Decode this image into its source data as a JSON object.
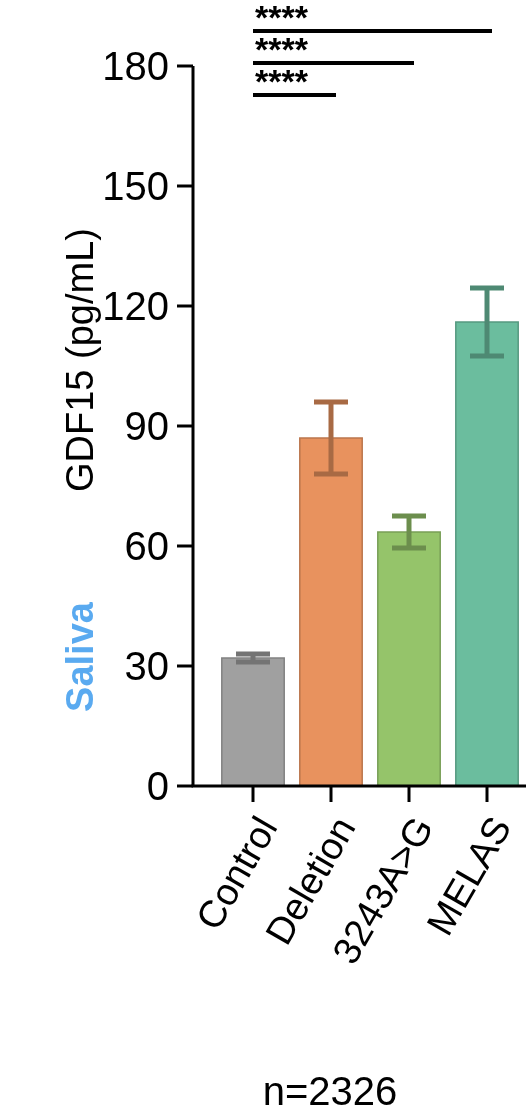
{
  "chart_data": {
    "type": "bar",
    "ylabel": "GDF15 (pg/mL)",
    "categories": [
      "Control",
      "Deletion",
      "3243A>G",
      "MELAS"
    ],
    "values": [
      32,
      87,
      63.5,
      116
    ],
    "colors": [
      "#a0a0a0",
      "#e8925e",
      "#95c46a",
      "#6bbd9e"
    ],
    "errors": [
      1,
      9,
      4,
      8.5
    ],
    "ylim": [
      0,
      180
    ],
    "yticks": [
      0,
      30,
      60,
      90,
      120,
      150,
      180
    ],
    "grid": false,
    "annotations": [
      "****",
      "****",
      "****",
      "Saliva",
      "n=2326"
    ]
  }
}
